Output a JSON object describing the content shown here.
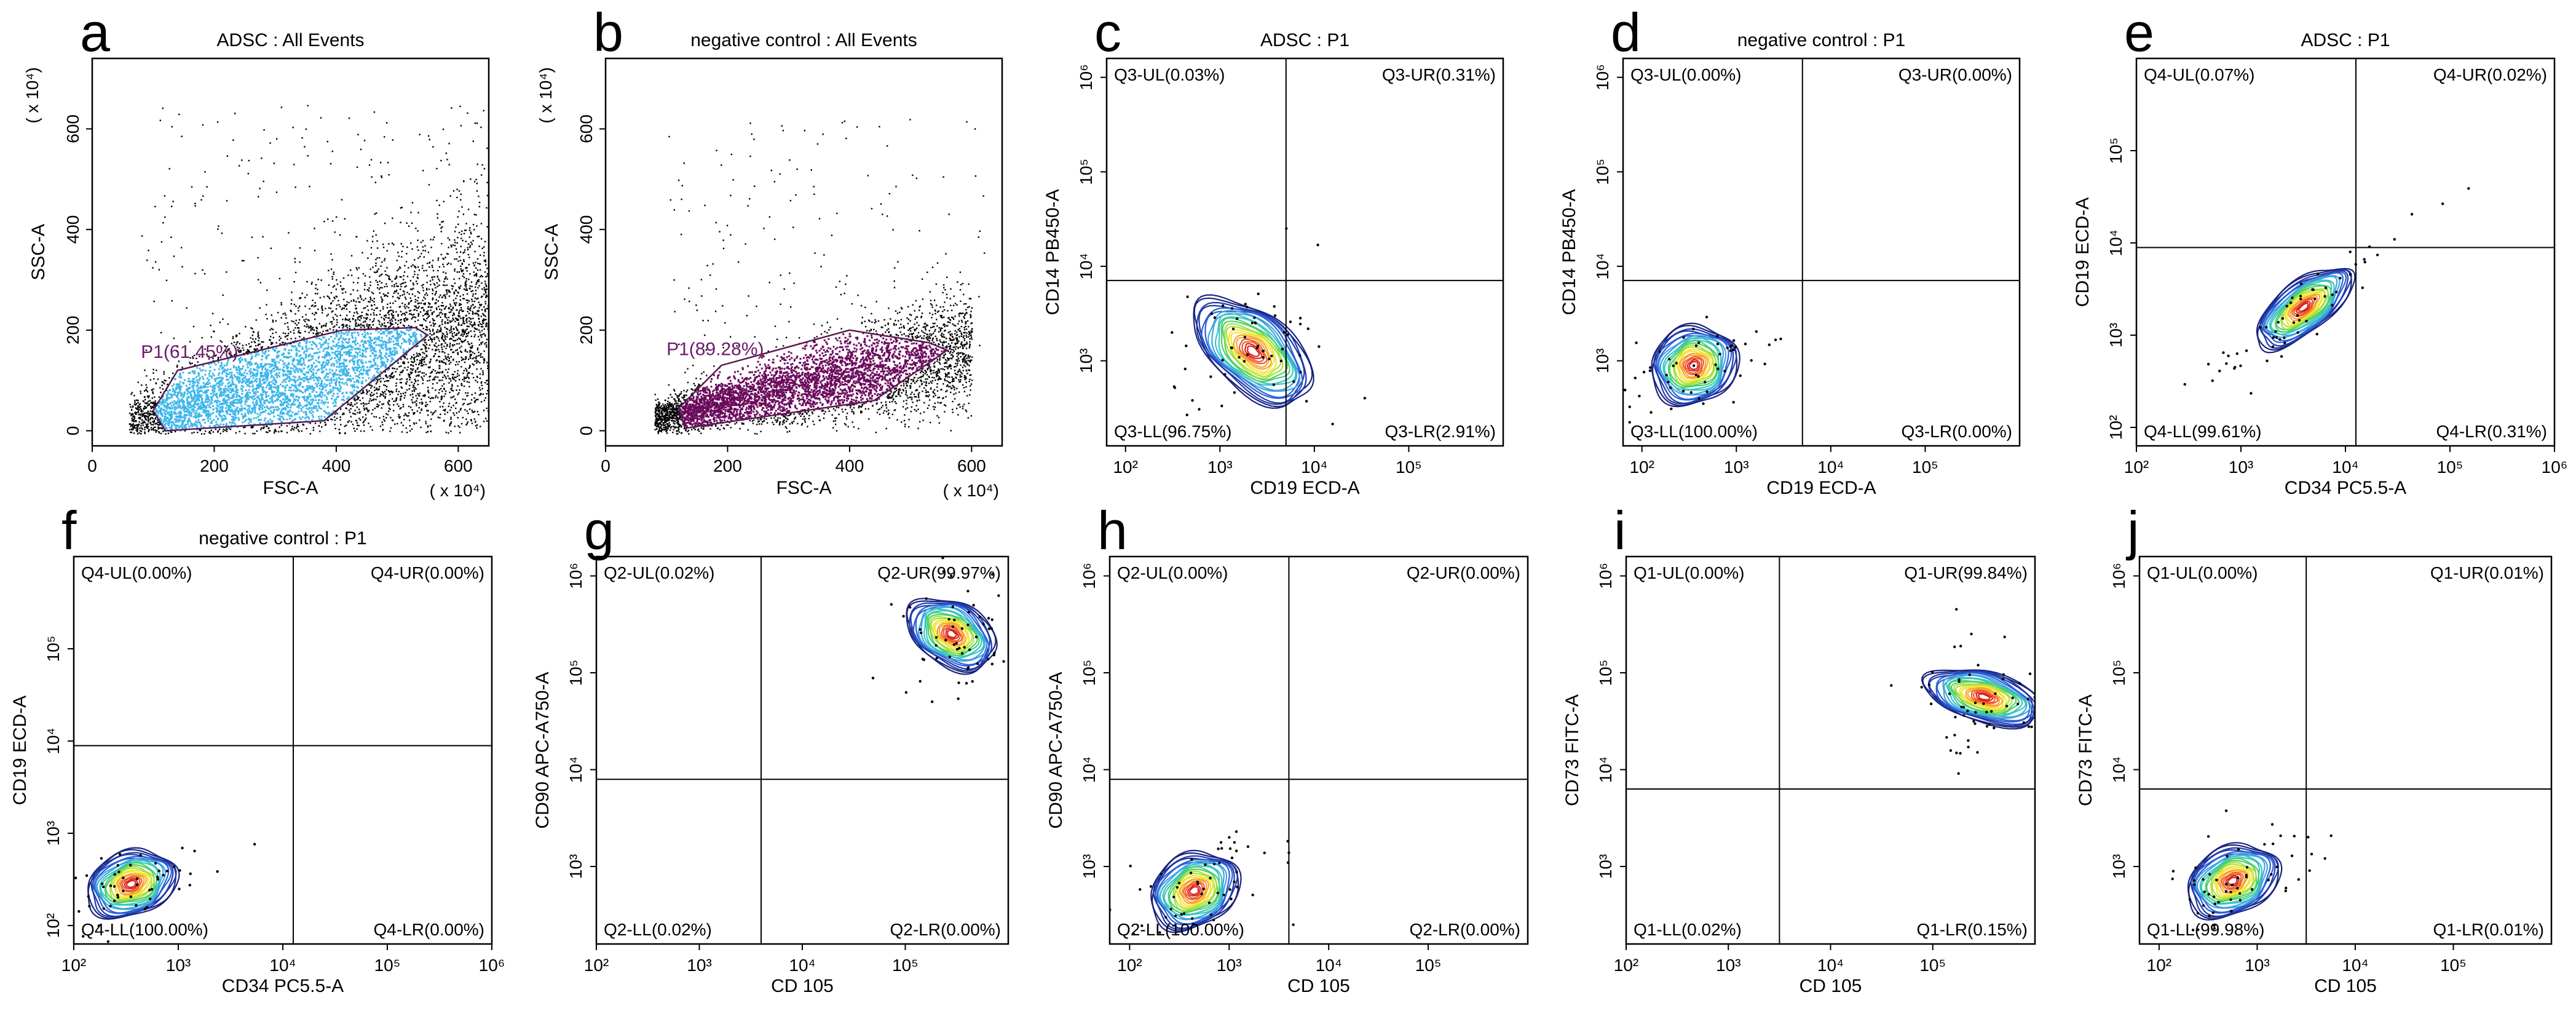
{
  "chart_data": [
    {
      "id": "a",
      "type": "scatter",
      "letter": "a",
      "title": "ADSC : All Events",
      "xlabel": "FSC-A",
      "ylabel": "SSC-A",
      "xlim": [
        0,
        650
      ],
      "ylim": [
        -30,
        740
      ],
      "xticks": [
        "0",
        "200",
        "400",
        "600"
      ],
      "yticks": [
        "0",
        "200",
        "400",
        "600"
      ],
      "x_mult": "( x 10⁴)",
      "y_mult": "( x 10⁴)",
      "gate_label": "P1(61.45%)",
      "gate_color": "#3cb6ea",
      "gate_polygon": [
        [
          120,
          0
        ],
        [
          380,
          20
        ],
        [
          550,
          190
        ],
        [
          530,
          205
        ],
        [
          410,
          200
        ],
        [
          140,
          120
        ],
        [
          100,
          40
        ]
      ]
    },
    {
      "id": "b",
      "type": "scatter",
      "letter": "b",
      "title": "negative control : All Events",
      "xlabel": "FSC-A",
      "ylabel": "SSC-A",
      "xlim": [
        0,
        650
      ],
      "ylim": [
        -30,
        740
      ],
      "xticks": [
        "0",
        "200",
        "400",
        "600"
      ],
      "yticks": [
        "0",
        "200",
        "400",
        "600"
      ],
      "x_mult": "( x 10⁴)",
      "y_mult": "( x 10⁴)",
      "gate_label": "P1(89.28%)",
      "gate_color": "#6b0a5c",
      "gate_polygon": [
        [
          130,
          5
        ],
        [
          440,
          60
        ],
        [
          560,
          160
        ],
        [
          530,
          175
        ],
        [
          400,
          200
        ],
        [
          190,
          130
        ],
        [
          120,
          45
        ]
      ]
    },
    {
      "id": "c",
      "type": "contour",
      "letter": "c",
      "title": "ADSC : P1",
      "xlabel": "CD19 ECD-A",
      "ylabel": "CD14 PB450-A",
      "xlog": [
        1.8,
        6.0
      ],
      "ylog": [
        2.1,
        6.2
      ],
      "xticks": [
        "10²",
        "10³",
        "10⁴",
        "10⁵"
      ],
      "yticks": [
        "10³",
        "10⁴",
        "10⁵",
        "10⁶"
      ],
      "gate_x": 3.7,
      "gate_y": 3.85,
      "center": [
        3.35,
        3.1
      ],
      "spread": [
        0.33,
        0.6
      ],
      "angle": 50,
      "quadrants": {
        "ul": "Q3-UL(0.03%)",
        "ur": "Q3-UR(0.31%)",
        "ll": "Q3-LL(96.75%)",
        "lr": "Q3-LR(2.91%)"
      }
    },
    {
      "id": "d",
      "type": "contour",
      "letter": "d",
      "title": "negative control : P1",
      "xlabel": "CD19 ECD-A",
      "ylabel": "CD14 PB450-A",
      "xlog": [
        1.8,
        6.0
      ],
      "ylog": [
        2.1,
        6.2
      ],
      "xticks": [
        "10²",
        "10³",
        "10⁴",
        "10⁵"
      ],
      "yticks": [
        "10³",
        "10⁴",
        "10⁵",
        "10⁶"
      ],
      "gate_x": 3.7,
      "gate_y": 3.85,
      "center": [
        2.55,
        2.95
      ],
      "spread": [
        0.38,
        0.33
      ],
      "angle": 25,
      "quadrants": {
        "ul": "Q3-UL(0.00%)",
        "ur": "Q3-UR(0.00%)",
        "ll": "Q3-LL(100.00%)",
        "lr": "Q3-LR(0.00%)"
      }
    },
    {
      "id": "e",
      "type": "contour",
      "letter": "e",
      "title": "ADSC : P1",
      "xlabel": "CD34 PC5.5-A",
      "ylabel": "CD19 ECD-A",
      "xlog": [
        2.0,
        6.0
      ],
      "ylog": [
        1.8,
        6.0
      ],
      "xticks": [
        "10²",
        "10³",
        "10⁴",
        "10⁵",
        "10⁶"
      ],
      "yticks": [
        "10²",
        "10³",
        "10⁴",
        "10⁵"
      ],
      "gate_x": 4.1,
      "gate_y": 3.95,
      "center": [
        3.6,
        3.3
      ],
      "spread": [
        0.45,
        0.22
      ],
      "angle": 38,
      "quadrants": {
        "ul": "Q4-UL(0.07%)",
        "ur": "Q4-UR(0.02%)",
        "ll": "Q4-LL(99.61%)",
        "lr": "Q4-LR(0.31%)"
      }
    },
    {
      "id": "f",
      "type": "contour",
      "letter": "f",
      "title": "negative control : P1",
      "xlabel": "CD34 PC5.5-A",
      "ylabel": "CD19 ECD-A",
      "xlog": [
        2.0,
        6.0
      ],
      "ylog": [
        1.8,
        6.0
      ],
      "xticks": [
        "10²",
        "10³",
        "10⁴",
        "10⁵",
        "10⁶"
      ],
      "yticks": [
        "10²",
        "10³",
        "10⁴",
        "10⁵"
      ],
      "gate_x": 4.1,
      "gate_y": 3.95,
      "center": [
        2.55,
        2.45
      ],
      "spread": [
        0.36,
        0.28
      ],
      "angle": 20,
      "quadrants": {
        "ul": "Q4-UL(0.00%)",
        "ur": "Q4-UR(0.00%)",
        "ll": "Q4-LL(100.00%)",
        "lr": "Q4-LR(0.00%)"
      }
    },
    {
      "id": "g",
      "type": "contour",
      "letter": "g",
      "title": "",
      "xlabel": "CD 105",
      "ylabel": "CD90 APC-A750-A",
      "xlog": [
        2.0,
        6.0
      ],
      "ylog": [
        2.2,
        6.2
      ],
      "xticks": [
        "10²",
        "10³",
        "10⁴",
        "10⁵"
      ],
      "yticks": [
        "10³",
        "10⁴",
        "10⁵",
        "10⁶"
      ],
      "gate_x": 3.6,
      "gate_y": 3.9,
      "center": [
        5.45,
        5.4
      ],
      "spread": [
        0.25,
        0.4
      ],
      "angle": 60,
      "quadrants": {
        "ul": "Q2-UL(0.02%)",
        "ur": "Q2-UR(99.97%)",
        "ll": "Q2-LL(0.02%)",
        "lr": "Q2-LR(0.00%)"
      }
    },
    {
      "id": "h",
      "type": "contour",
      "letter": "h",
      "title": "",
      "xlabel": "CD 105",
      "ylabel": "CD90 APC-A750-A",
      "xlog": [
        1.8,
        6.0
      ],
      "ylog": [
        2.2,
        6.2
      ],
      "xticks": [
        "10²",
        "10³",
        "10⁴",
        "10⁵"
      ],
      "yticks": [
        "10³",
        "10⁴",
        "10⁵",
        "10⁶"
      ],
      "gate_x": 3.6,
      "gate_y": 3.9,
      "center": [
        2.65,
        2.75
      ],
      "spread": [
        0.38,
        0.3
      ],
      "angle": 30,
      "quadrants": {
        "ul": "Q2-UL(0.00%)",
        "ur": "Q2-UR(0.00%)",
        "ll": "Q2-LL(100.00%)",
        "lr": "Q2-LR(0.00%)"
      }
    },
    {
      "id": "i",
      "type": "contour",
      "letter": "i",
      "title": "",
      "xlabel": "CD 105",
      "ylabel": "CD73 FITC-A",
      "xlog": [
        2.0,
        6.0
      ],
      "ylog": [
        2.2,
        6.2
      ],
      "xticks": [
        "10²",
        "10³",
        "10⁴",
        "10⁵"
      ],
      "yticks": [
        "10³",
        "10⁴",
        "10⁵",
        "10⁶"
      ],
      "gate_x": 3.5,
      "gate_y": 3.8,
      "center": [
        5.5,
        4.75
      ],
      "spread": [
        0.2,
        0.5
      ],
      "angle": 75,
      "quadrants": {
        "ul": "Q1-UL(0.00%)",
        "ur": "Q1-UR(99.84%)",
        "ll": "Q1-LL(0.02%)",
        "lr": "Q1-LR(0.15%)"
      }
    },
    {
      "id": "j",
      "type": "contour",
      "letter": "j",
      "title": "",
      "xlabel": "CD 105",
      "ylabel": "CD73 FITC-A",
      "xlog": [
        1.8,
        6.0
      ],
      "ylog": [
        2.2,
        6.2
      ],
      "xticks": [
        "10²",
        "10³",
        "10⁴",
        "10⁵"
      ],
      "yticks": [
        "10³",
        "10⁴",
        "10⁵",
        "10⁶"
      ],
      "gate_x": 3.5,
      "gate_y": 3.8,
      "center": [
        2.75,
        2.85
      ],
      "spread": [
        0.4,
        0.28
      ],
      "angle": 25,
      "quadrants": {
        "ul": "Q1-UL(0.00%)",
        "ur": "Q1-UR(0.01%)",
        "ll": "Q1-LL(99.98%)",
        "lr": "Q1-LR(0.01%)"
      }
    }
  ],
  "colors": {
    "axis": "#000000",
    "contour": [
      "#1a237e",
      "#1f3aa8",
      "#2c5fd6",
      "#3fa3e0",
      "#39c7c0",
      "#4fd06b",
      "#a8e03a",
      "#f2e533",
      "#f7a52e",
      "#ef5a2a",
      "#d8231c"
    ]
  }
}
